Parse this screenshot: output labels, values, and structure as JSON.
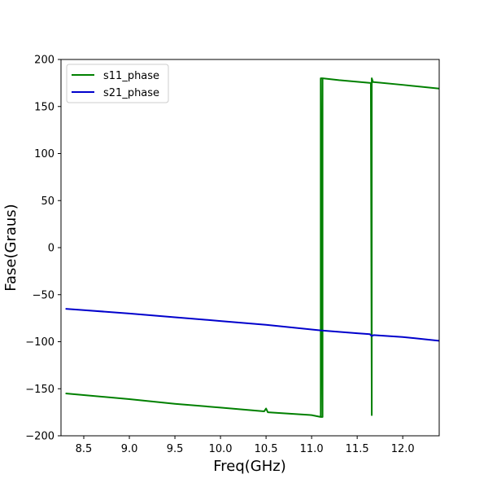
{
  "chart_data": {
    "type": "line",
    "xlabel": "Freq(GHz)",
    "ylabel": "Fase(Graus)",
    "xlim": [
      8.25,
      12.4
    ],
    "ylim": [
      -200,
      200
    ],
    "xticks": [
      8.5,
      9.0,
      9.5,
      10.0,
      10.5,
      11.0,
      11.5,
      12.0
    ],
    "xtick_labels": [
      "8.5",
      "9.0",
      "9.5",
      "10.0",
      "10.5",
      "11.0",
      "11.5",
      "12.0"
    ],
    "yticks": [
      -200,
      -150,
      -100,
      -50,
      0,
      50,
      100,
      150,
      200
    ],
    "ytick_labels": [
      "−200",
      "−150",
      "−100",
      "−50",
      "0",
      "50",
      "100",
      "150",
      "200"
    ],
    "grid": false,
    "legend_position": "top-left",
    "series": [
      {
        "name": "s11_phase",
        "color": "#008000",
        "x": [
          8.3,
          9.0,
          9.5,
          10.0,
          10.48,
          10.5,
          10.52,
          11.0,
          11.1,
          11.1,
          11.1,
          11.12,
          11.12,
          11.1,
          11.1,
          11.12,
          11.3,
          11.65,
          11.66,
          11.66,
          11.67,
          11.67,
          11.68,
          12.0,
          12.4
        ],
        "y": [
          -155,
          -161,
          -166,
          -170,
          -174,
          -171,
          -175,
          -178,
          -180,
          180,
          -180,
          -180,
          180,
          180,
          -180,
          180,
          178,
          175,
          -178,
          180,
          177,
          176,
          176,
          173,
          169
        ]
      },
      {
        "name": "s21_phase",
        "color": "#0000cc",
        "x": [
          8.3,
          9.0,
          9.5,
          10.0,
          10.5,
          11.0,
          11.1,
          11.5,
          11.64,
          11.66,
          11.68,
          12.0,
          12.4
        ],
        "y": [
          -65,
          -70,
          -74,
          -78,
          -82,
          -87,
          -88,
          -91,
          -92,
          -94,
          -93,
          -95,
          -99
        ]
      }
    ]
  }
}
